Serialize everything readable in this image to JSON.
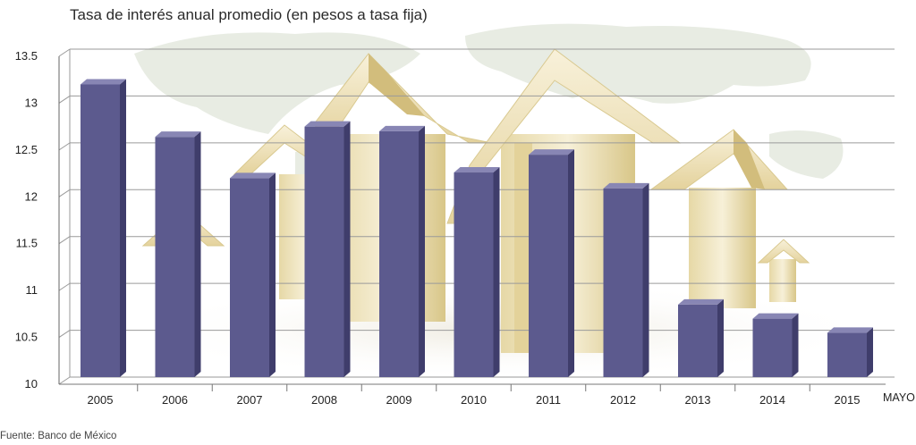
{
  "chart_data": {
    "type": "bar",
    "title": "Tasa de interés anual promedio (en pesos a tasa fija)",
    "xlabel": "",
    "ylabel": "",
    "categories": [
      "2005",
      "2006",
      "2007",
      "2008",
      "2009",
      "2010",
      "2011",
      "2012",
      "2013",
      "2014",
      "2015"
    ],
    "values": [
      13.2,
      12.64,
      12.2,
      12.75,
      12.7,
      12.26,
      12.45,
      12.09,
      10.85,
      10.7,
      10.55
    ],
    "ylim": [
      10,
      13.5
    ],
    "yticks": [
      "10",
      "10.5",
      "11",
      "11.5",
      "12",
      "12.5",
      "13",
      "13.5"
    ],
    "grid": true,
    "legend": "none",
    "annotation": "MAYO",
    "source": "Fuente: Banco de México",
    "colors": {
      "bar_front": "#5c5a8e",
      "bar_side": "#3f3d6b",
      "bar_top": "#8886b4",
      "grid": "#9a9a9a",
      "house": "#f0e6c2",
      "house_shade": "#d9c990",
      "map": "#e7ebe1"
    }
  }
}
